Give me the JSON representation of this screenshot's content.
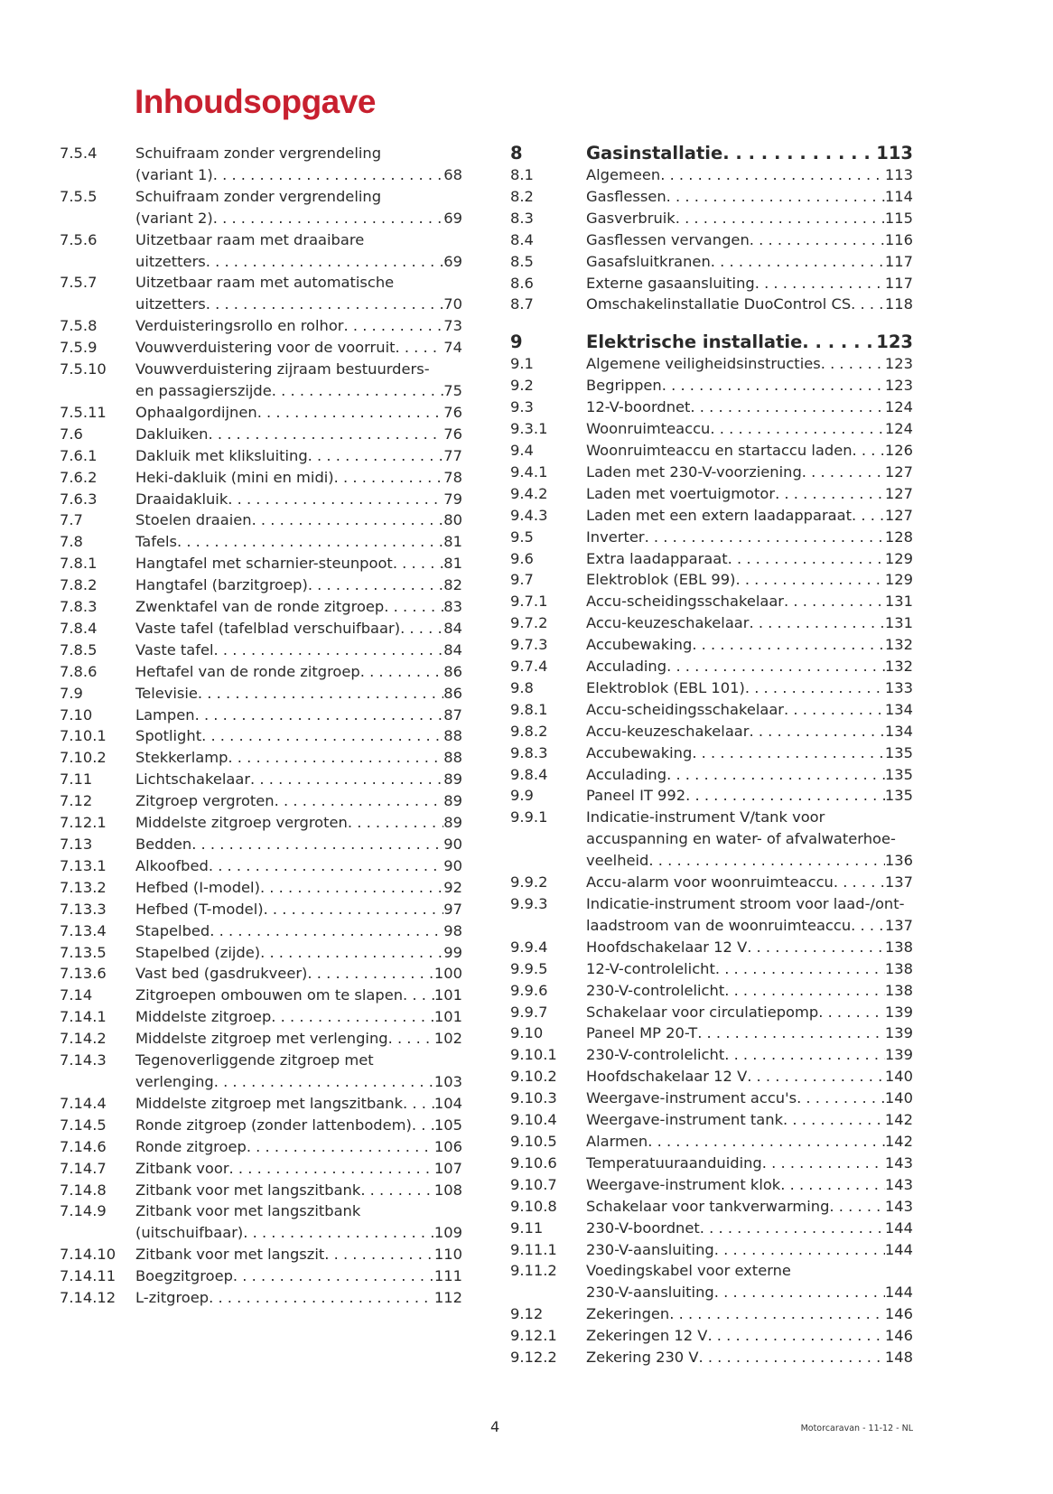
{
  "title": "Inhoudsopgave",
  "left": [
    {
      "num": "7.5.4",
      "lines": [
        "Schuifraam zonder vergrendeling",
        "(variant 1)"
      ],
      "page": "68"
    },
    {
      "num": "7.5.5",
      "lines": [
        "Schuifraam zonder vergrendeling",
        "(variant 2)"
      ],
      "page": "69"
    },
    {
      "num": "7.5.6",
      "lines": [
        "Uitzetbaar raam met draaibare",
        "uitzetters"
      ],
      "page": "69"
    },
    {
      "num": "7.5.7",
      "lines": [
        "Uitzetbaar raam met automatische",
        "uitzetters"
      ],
      "page": "70"
    },
    {
      "num": "7.5.8",
      "lines": [
        "Verduisteringsrollo en rolhor"
      ],
      "page": "73"
    },
    {
      "num": "7.5.9",
      "lines": [
        "Vouwverduistering voor de voorruit"
      ],
      "page": "74"
    },
    {
      "num": "7.5.10",
      "lines": [
        "Vouwverduistering zijraam bestuurders-",
        "en passagierszijde"
      ],
      "page": "75"
    },
    {
      "num": "7.5.11",
      "lines": [
        "Ophaalgordijnen"
      ],
      "page": "76"
    },
    {
      "num": "7.6",
      "lines": [
        "Dakluiken"
      ],
      "page": "76"
    },
    {
      "num": "7.6.1",
      "lines": [
        "Dakluik met kliksluiting"
      ],
      "page": "77"
    },
    {
      "num": "7.6.2",
      "lines": [
        "Heki-dakluik (mini en midi)"
      ],
      "page": "78"
    },
    {
      "num": "7.6.3",
      "lines": [
        "Draaidakluik"
      ],
      "page": "79"
    },
    {
      "num": "7.7",
      "lines": [
        "Stoelen draaien"
      ],
      "page": "80"
    },
    {
      "num": "7.8",
      "lines": [
        "Tafels"
      ],
      "page": "81"
    },
    {
      "num": "7.8.1",
      "lines": [
        "Hangtafel met scharnier-steunpoot"
      ],
      "page": "81"
    },
    {
      "num": "7.8.2",
      "lines": [
        "Hangtafel (barzitgroep)"
      ],
      "page": "82"
    },
    {
      "num": "7.8.3",
      "lines": [
        "Zwenktafel van de ronde zitgroep"
      ],
      "page": "83"
    },
    {
      "num": "7.8.4",
      "lines": [
        "Vaste tafel (tafelblad verschuifbaar)"
      ],
      "page": "84"
    },
    {
      "num": "7.8.5",
      "lines": [
        "Vaste tafel"
      ],
      "page": "84"
    },
    {
      "num": "7.8.6",
      "lines": [
        "Heftafel van de ronde zitgroep"
      ],
      "page": "86"
    },
    {
      "num": "7.9",
      "lines": [
        "Televisie"
      ],
      "page": "86"
    },
    {
      "num": "7.10",
      "lines": [
        "Lampen"
      ],
      "page": "87"
    },
    {
      "num": "7.10.1",
      "lines": [
        "Spotlight"
      ],
      "page": "88"
    },
    {
      "num": "7.10.2",
      "lines": [
        "Stekkerlamp"
      ],
      "page": "88"
    },
    {
      "num": "7.11",
      "lines": [
        "Lichtschakelaar"
      ],
      "page": "89"
    },
    {
      "num": "7.12",
      "lines": [
        "Zitgroep vergroten"
      ],
      "page": "89"
    },
    {
      "num": "7.12.1",
      "lines": [
        "Middelste zitgroep vergroten"
      ],
      "page": "89"
    },
    {
      "num": "7.13",
      "lines": [
        "Bedden"
      ],
      "page": "90"
    },
    {
      "num": "7.13.1",
      "lines": [
        "Alkoofbed"
      ],
      "page": "90"
    },
    {
      "num": "7.13.2",
      "lines": [
        "Hefbed (I-model)"
      ],
      "page": "92"
    },
    {
      "num": "7.13.3",
      "lines": [
        "Hefbed (T-model)"
      ],
      "page": "97"
    },
    {
      "num": "7.13.4",
      "lines": [
        "Stapelbed"
      ],
      "page": "98"
    },
    {
      "num": "7.13.5",
      "lines": [
        "Stapelbed (zijde)"
      ],
      "page": "99"
    },
    {
      "num": "7.13.6",
      "lines": [
        "Vast bed (gasdrukveer)"
      ],
      "page": "100"
    },
    {
      "num": "7.14",
      "lines": [
        "Zitgroepen ombouwen om te slapen"
      ],
      "page": "101"
    },
    {
      "num": "7.14.1",
      "lines": [
        "Middelste zitgroep"
      ],
      "page": "101"
    },
    {
      "num": "7.14.2",
      "lines": [
        "Middelste zitgroep met verlenging"
      ],
      "page": "102"
    },
    {
      "num": "7.14.3",
      "lines": [
        "Tegenoverliggende zitgroep met",
        "verlenging"
      ],
      "page": "103"
    },
    {
      "num": "7.14.4",
      "lines": [
        "Middelste zitgroep met langszitbank"
      ],
      "page": "104"
    },
    {
      "num": "7.14.5",
      "lines": [
        "Ronde zitgroep (zonder lattenbodem)"
      ],
      "page": "105"
    },
    {
      "num": "7.14.6",
      "lines": [
        "Ronde zitgroep"
      ],
      "page": "106"
    },
    {
      "num": "7.14.7",
      "lines": [
        "Zitbank voor"
      ],
      "page": "107"
    },
    {
      "num": "7.14.8",
      "lines": [
        "Zitbank voor met langszitbank"
      ],
      "page": "108"
    },
    {
      "num": "7.14.9",
      "lines": [
        "Zitbank voor met langszitbank",
        "(uitschuifbaar)"
      ],
      "page": "109"
    },
    {
      "num": "7.14.10",
      "lines": [
        "Zitbank voor met langszit"
      ],
      "page": "110"
    },
    {
      "num": "7.14.11",
      "lines": [
        "Boegzitgroep"
      ],
      "page": "111"
    },
    {
      "num": "7.14.12",
      "lines": [
        "L-zitgroep"
      ],
      "page": "112"
    }
  ],
  "right": [
    {
      "num": "8",
      "lines": [
        "Gasinstallatie"
      ],
      "page": "113",
      "chapter": true
    },
    {
      "num": "8.1",
      "lines": [
        "Algemeen"
      ],
      "page": "113"
    },
    {
      "num": "8.2",
      "lines": [
        "Gasflessen"
      ],
      "page": "114"
    },
    {
      "num": "8.3",
      "lines": [
        "Gasverbruik"
      ],
      "page": "115"
    },
    {
      "num": "8.4",
      "lines": [
        "Gasflessen vervangen"
      ],
      "page": "116"
    },
    {
      "num": "8.5",
      "lines": [
        "Gasafsluitkranen"
      ],
      "page": "117"
    },
    {
      "num": "8.6",
      "lines": [
        "Externe gasaansluiting"
      ],
      "page": "117"
    },
    {
      "num": "8.7",
      "lines": [
        "Omschakelinstallatie DuoControl CS"
      ],
      "page": "118"
    },
    {
      "num": "9",
      "lines": [
        "Elektrische installatie"
      ],
      "page": "123",
      "chapter": true
    },
    {
      "num": "9.1",
      "lines": [
        "Algemene veiligheidsinstructies"
      ],
      "page": "123"
    },
    {
      "num": "9.2",
      "lines": [
        "Begrippen"
      ],
      "page": "123"
    },
    {
      "num": "9.3",
      "lines": [
        "12-V-boordnet"
      ],
      "page": "124"
    },
    {
      "num": "9.3.1",
      "lines": [
        "Woonruimteaccu"
      ],
      "page": "124"
    },
    {
      "num": "9.4",
      "lines": [
        "Woonruimteaccu en startaccu laden"
      ],
      "page": "126"
    },
    {
      "num": "9.4.1",
      "lines": [
        "Laden met 230-V-voorziening"
      ],
      "page": "127"
    },
    {
      "num": "9.4.2",
      "lines": [
        "Laden met voertuigmotor"
      ],
      "page": "127"
    },
    {
      "num": "9.4.3",
      "lines": [
        "Laden met een extern laadapparaat"
      ],
      "page": "127"
    },
    {
      "num": "9.5",
      "lines": [
        "Inverter"
      ],
      "page": "128"
    },
    {
      "num": "9.6",
      "lines": [
        "Extra laadapparaat"
      ],
      "page": "129"
    },
    {
      "num": "9.7",
      "lines": [
        "Elektroblok (EBL 99)"
      ],
      "page": "129"
    },
    {
      "num": "9.7.1",
      "lines": [
        "Accu-scheidingsschakelaar"
      ],
      "page": "131"
    },
    {
      "num": "9.7.2",
      "lines": [
        "Accu-keuzeschakelaar"
      ],
      "page": "131"
    },
    {
      "num": "9.7.3",
      "lines": [
        "Accubewaking"
      ],
      "page": "132"
    },
    {
      "num": "9.7.4",
      "lines": [
        "Acculading"
      ],
      "page": "132"
    },
    {
      "num": "9.8",
      "lines": [
        "Elektroblok (EBL 101)"
      ],
      "page": "133"
    },
    {
      "num": "9.8.1",
      "lines": [
        "Accu-scheidingsschakelaar"
      ],
      "page": "134"
    },
    {
      "num": "9.8.2",
      "lines": [
        "Accu-keuzeschakelaar"
      ],
      "page": "134"
    },
    {
      "num": "9.8.3",
      "lines": [
        "Accubewaking"
      ],
      "page": "135"
    },
    {
      "num": "9.8.4",
      "lines": [
        "Acculading"
      ],
      "page": "135"
    },
    {
      "num": "9.9",
      "lines": [
        "Paneel IT 992"
      ],
      "page": "135"
    },
    {
      "num": "9.9.1",
      "lines": [
        "Indicatie-instrument V/tank voor",
        "accuspanning en water- of afvalwaterhoe-",
        "veelheid"
      ],
      "page": "136"
    },
    {
      "num": "9.9.2",
      "lines": [
        "Accu-alarm voor woonruimteaccu"
      ],
      "page": "137"
    },
    {
      "num": "9.9.3",
      "lines": [
        "Indicatie-instrument stroom voor laad-/ont-",
        "laadstroom van de woonruimteaccu"
      ],
      "page": "137"
    },
    {
      "num": "9.9.4",
      "lines": [
        "Hoofdschakelaar 12 V"
      ],
      "page": "138"
    },
    {
      "num": "9.9.5",
      "lines": [
        "12-V-controlelicht"
      ],
      "page": "138"
    },
    {
      "num": "9.9.6",
      "lines": [
        "230-V-controlelicht"
      ],
      "page": "138"
    },
    {
      "num": "9.9.7",
      "lines": [
        "Schakelaar voor circulatiepomp"
      ],
      "page": "139"
    },
    {
      "num": "9.10",
      "lines": [
        "Paneel MP 20-T"
      ],
      "page": "139"
    },
    {
      "num": "9.10.1",
      "lines": [
        "230-V-controlelicht"
      ],
      "page": "139"
    },
    {
      "num": "9.10.2",
      "lines": [
        "Hoofdschakelaar 12 V"
      ],
      "page": "140"
    },
    {
      "num": "9.10.3",
      "lines": [
        "Weergave-instrument accu's"
      ],
      "page": "140"
    },
    {
      "num": "9.10.4",
      "lines": [
        "Weergave-instrument tank"
      ],
      "page": "142"
    },
    {
      "num": "9.10.5",
      "lines": [
        "Alarmen"
      ],
      "page": "142"
    },
    {
      "num": "9.10.6",
      "lines": [
        "Temperatuuraanduiding"
      ],
      "page": "143"
    },
    {
      "num": "9.10.7",
      "lines": [
        "Weergave-instrument klok"
      ],
      "page": "143"
    },
    {
      "num": "9.10.8",
      "lines": [
        "Schakelaar voor tankverwarming"
      ],
      "page": "143"
    },
    {
      "num": "9.11",
      "lines": [
        "230-V-boordnet"
      ],
      "page": "144"
    },
    {
      "num": "9.11.1",
      "lines": [
        "230-V-aansluiting"
      ],
      "page": "144"
    },
    {
      "num": "9.11.2",
      "lines": [
        "Voedingskabel voor externe",
        "230-V-aansluiting"
      ],
      "page": "144"
    },
    {
      "num": "9.12",
      "lines": [
        "Zekeringen"
      ],
      "page": "146"
    },
    {
      "num": "9.12.1",
      "lines": [
        "Zekeringen 12 V"
      ],
      "page": "146"
    },
    {
      "num": "9.12.2",
      "lines": [
        "Zekering 230 V"
      ],
      "page": "148"
    }
  ],
  "footer": {
    "page_number": "4",
    "doc_label": "Motorcaravan - 11-12 - NL"
  },
  "colors": {
    "title": "#c8202f",
    "text": "#2a2a2a"
  }
}
